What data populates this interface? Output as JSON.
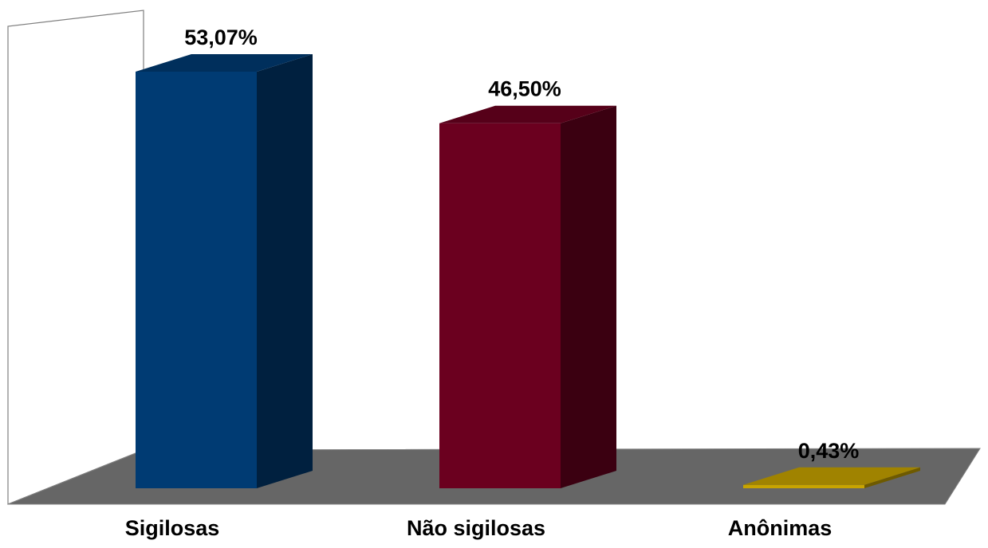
{
  "chart_data": {
    "type": "bar",
    "title": "",
    "xlabel": "",
    "ylabel": "",
    "categories": [
      "Sigilosas",
      "Não sigilosas",
      "Anônimas"
    ],
    "values": [
      53.07,
      46.5,
      0.43
    ],
    "data_labels": [
      "53,07%",
      "46,50%",
      "0,43%"
    ],
    "unit": "%",
    "ylim": [
      0,
      55
    ],
    "style": "3d-column",
    "grid": false,
    "legend": "none",
    "colors": [
      "#003b73",
      "#6b001f",
      "#c8a400"
    ],
    "floor_color": "#666666",
    "wall_color": "#ffffff"
  }
}
